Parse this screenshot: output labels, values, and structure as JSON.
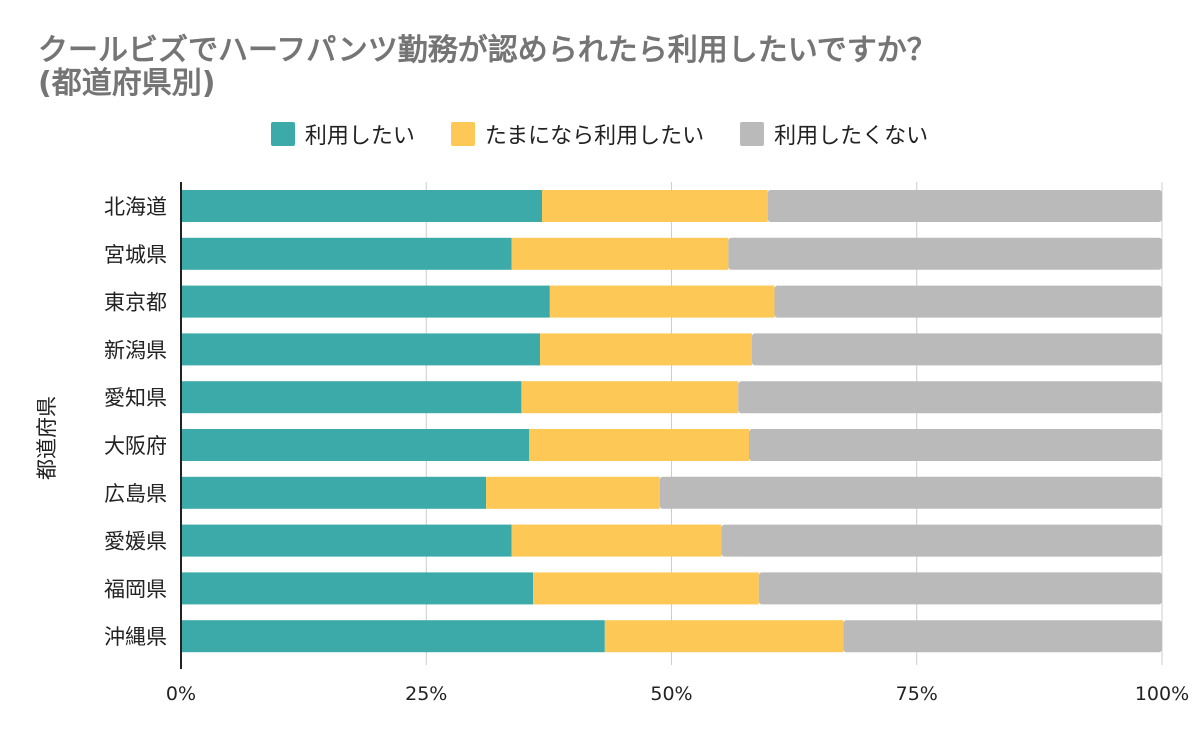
{
  "chart_data": {
    "type": "bar",
    "orientation": "horizontal",
    "stacked": "100%",
    "title": "クールビズでハーフパンツ勤務が認められたら利用したいですか？",
    "subtitle": "(都道府県別)",
    "ylabel": "都道府県",
    "xlabel": "",
    "xlim": [
      0,
      100
    ],
    "x_ticks": [
      "0%",
      "25%",
      "50%",
      "75%",
      "100%"
    ],
    "grid": true,
    "legend_position": "top-center",
    "categories": [
      "北海道",
      "宮城県",
      "東京都",
      "新潟県",
      "愛知県",
      "大阪府",
      "広島県",
      "愛媛県",
      "福岡県",
      "沖縄県"
    ],
    "series": [
      {
        "name": "利用したい",
        "color": "#3BAAA9",
        "values": [
          36.8,
          33.7,
          37.6,
          36.6,
          34.7,
          35.5,
          31.1,
          33.7,
          35.9,
          43.2
        ]
      },
      {
        "name": "たまになら利用したい",
        "color": "#FDC855",
        "values": [
          23.0,
          22.1,
          22.9,
          21.6,
          22.1,
          22.4,
          17.7,
          21.4,
          23.0,
          24.3
        ]
      },
      {
        "name": "利用したくない",
        "color": "#BABABA",
        "values": [
          40.2,
          44.2,
          39.5,
          41.8,
          43.2,
          42.1,
          51.2,
          44.9,
          41.1,
          32.5
        ]
      }
    ]
  }
}
